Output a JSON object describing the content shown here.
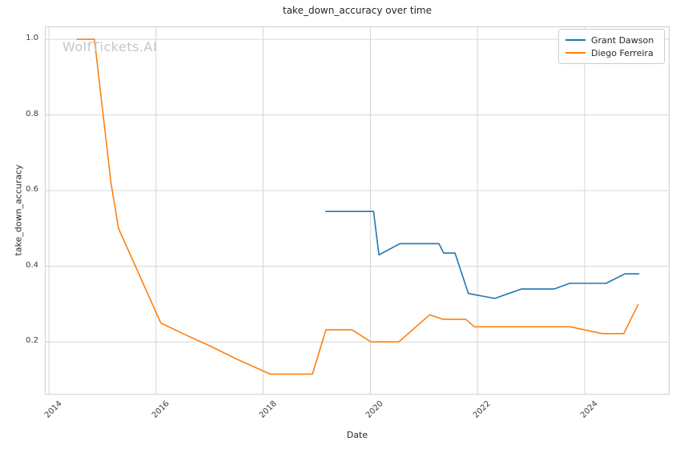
{
  "watermark": "WolfTickets.AI",
  "colors": {
    "series_blue": "#1f77b4",
    "series_orange": "#ff7f0e",
    "grid": "#d6d6d6",
    "spine": "#cfcfcf",
    "watermark": "#c6c6c6",
    "text": "#262626"
  },
  "chart_data": {
    "type": "line",
    "title": "take_down_accuracy over time",
    "xlabel": "Date",
    "ylabel": "take_down_accuracy",
    "xlim": [
      2013.94,
      2025.57
    ],
    "ylim": [
      0.063,
      1.032
    ],
    "grid": true,
    "legend_position": "upper right",
    "xticks": [
      {
        "label": "2014",
        "value": 2014
      },
      {
        "label": "2016",
        "value": 2016
      },
      {
        "label": "2018",
        "value": 2018
      },
      {
        "label": "2020",
        "value": 2020
      },
      {
        "label": "2022",
        "value": 2022
      },
      {
        "label": "2024",
        "value": 2024
      }
    ],
    "yticks": [
      {
        "label": "0.2",
        "value": 0.2
      },
      {
        "label": "0.4",
        "value": 0.4
      },
      {
        "label": "0.6",
        "value": 0.6
      },
      {
        "label": "0.8",
        "value": 0.8
      },
      {
        "label": "1.0",
        "value": 1.0
      }
    ],
    "series": [
      {
        "name": "Grant Dawson",
        "color": "#1f77b4",
        "points": [
          [
            2019.16,
            0.545
          ],
          [
            2020.06,
            0.545
          ],
          [
            2020.16,
            0.43
          ],
          [
            2020.55,
            0.46
          ],
          [
            2021.28,
            0.46
          ],
          [
            2021.37,
            0.435
          ],
          [
            2021.58,
            0.435
          ],
          [
            2021.83,
            0.328
          ],
          [
            2022.32,
            0.315
          ],
          [
            2022.82,
            0.34
          ],
          [
            2023.43,
            0.34
          ],
          [
            2023.72,
            0.355
          ],
          [
            2024.4,
            0.355
          ],
          [
            2024.75,
            0.38
          ],
          [
            2025.02,
            0.38
          ]
        ]
      },
      {
        "name": "Diego Ferreira",
        "color": "#ff7f0e",
        "points": [
          [
            2014.52,
            1.0
          ],
          [
            2014.85,
            1.0
          ],
          [
            2015.16,
            0.62
          ],
          [
            2015.3,
            0.5
          ],
          [
            2016.09,
            0.25
          ],
          [
            2016.5,
            0.222
          ],
          [
            2017.0,
            0.19
          ],
          [
            2017.5,
            0.155
          ],
          [
            2018.13,
            0.115
          ],
          [
            2018.92,
            0.115
          ],
          [
            2019.17,
            0.232
          ],
          [
            2019.66,
            0.232
          ],
          [
            2020.01,
            0.2
          ],
          [
            2020.53,
            0.2
          ],
          [
            2021.11,
            0.272
          ],
          [
            2021.35,
            0.26
          ],
          [
            2021.78,
            0.26
          ],
          [
            2021.94,
            0.24
          ],
          [
            2023.73,
            0.24
          ],
          [
            2024.33,
            0.222
          ],
          [
            2024.73,
            0.222
          ],
          [
            2025.0,
            0.3
          ]
        ]
      }
    ]
  }
}
